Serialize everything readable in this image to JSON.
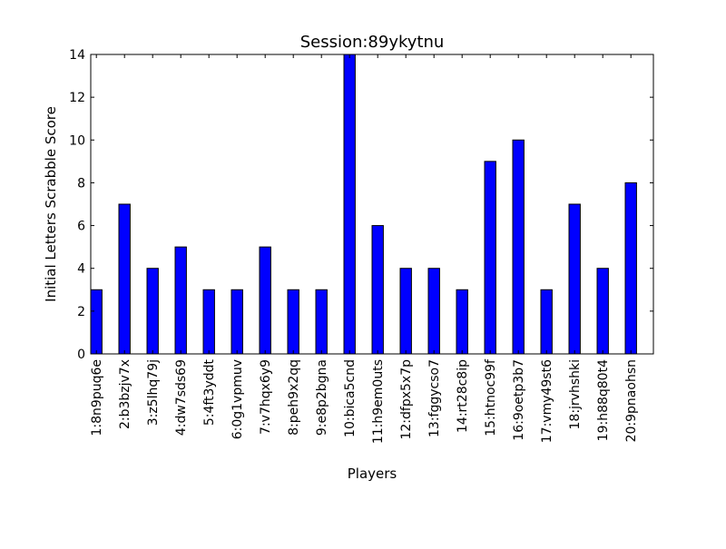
{
  "chart_data": {
    "type": "bar",
    "title": "Session:89ykytnu",
    "xlabel": "Players",
    "ylabel": "Initial Letters Scrabble Score",
    "ylim": [
      0,
      14
    ],
    "yticks": [
      0,
      2,
      4,
      6,
      8,
      10,
      12,
      14
    ],
    "categories": [
      "1:8n9puq6e",
      "2:b3bzjv7x",
      "3:z5lhq79j",
      "4:dw7sds69",
      "5:4ft3yddt",
      "6:0g1vpmuv",
      "7:v7hqx6y9",
      "8:peh9x2qq",
      "9:e8p2bgna",
      "10:bica5cnd",
      "11:h9em0uts",
      "12:dfpx5x7p",
      "13:fggycso7",
      "14:rt28c8ip",
      "15:htnoc99f",
      "16:9oetp3b7",
      "17:vmy49st6",
      "18:jrvhshki",
      "19:h88q80t4",
      "20:9pnaohsn"
    ],
    "values": [
      3,
      7,
      4,
      5,
      3,
      3,
      5,
      3,
      3,
      14,
      6,
      4,
      4,
      3,
      9,
      10,
      3,
      7,
      4,
      8
    ],
    "bar_color": "#0000ff",
    "grid": false,
    "legend": "none"
  }
}
